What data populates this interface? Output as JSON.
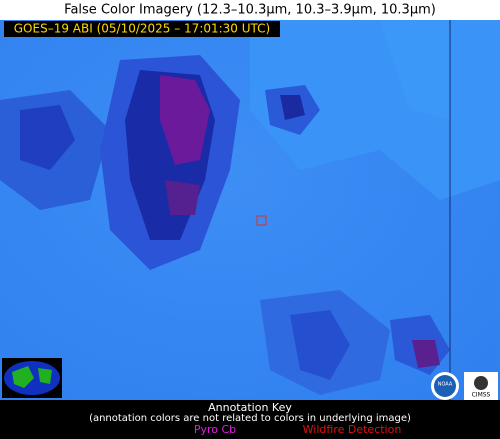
{
  "header": {
    "title": "False Color Imagery (12.3–10.3µm, 10.3–3.9µm, 10.3µm)"
  },
  "image": {
    "label": "GOES–19 ABI (05/10/2025 – 17:01:30 UTC)"
  },
  "logos": {
    "noaa": "NOAA",
    "cimss": "CIMSS"
  },
  "annotation_key": {
    "title": "Annotation Key",
    "note": "(annotation colors are not related to colors in underlying image)",
    "items": [
      "Pyro Cb",
      "Wildfire Detection"
    ]
  }
}
